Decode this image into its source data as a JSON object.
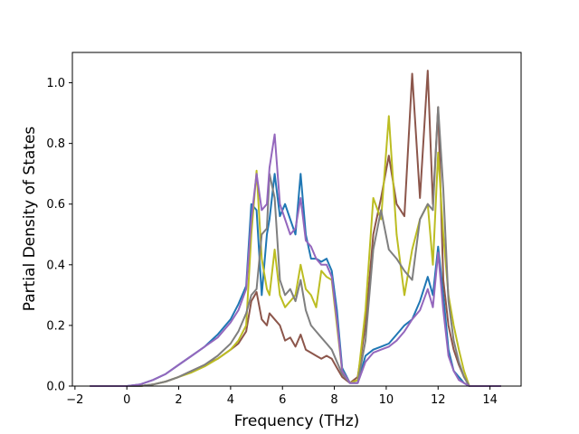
{
  "chart_data": {
    "type": "line",
    "title": "",
    "xlabel": "Frequency (THz)",
    "ylabel": "Partial Density of States",
    "xlim": [
      -2.1,
      15.2
    ],
    "ylim": [
      0.0,
      1.1
    ],
    "xticks": [
      -2,
      0,
      2,
      4,
      6,
      8,
      10,
      12,
      14
    ],
    "xtick_labels": [
      "−2",
      "0",
      "2",
      "4",
      "6",
      "8",
      "10",
      "12",
      "14"
    ],
    "yticks": [
      0.0,
      0.2,
      0.4,
      0.6,
      0.8,
      1.0
    ],
    "ytick_labels": [
      "0.0",
      "0.2",
      "0.4",
      "0.6",
      "0.8",
      "1.0"
    ],
    "grid": false,
    "legend": "none",
    "series": [
      {
        "color": "#1f77b4",
        "x": [
          -1.4,
          0,
          0.5,
          1,
          1.5,
          2,
          2.5,
          3,
          3.5,
          4,
          4.3,
          4.6,
          4.8,
          5,
          5.2,
          5.4,
          5.5,
          5.7,
          5.9,
          6.1,
          6.3,
          6.5,
          6.7,
          6.9,
          7.1,
          7.3,
          7.5,
          7.7,
          7.9,
          8.1,
          8.3,
          8.6,
          8.9,
          9.2,
          9.5,
          9.8,
          10.1,
          10.4,
          10.7,
          11,
          11.3,
          11.6,
          11.8,
          12,
          12.2,
          12.4,
          12.6,
          12.8,
          13,
          13.2,
          14.4
        ],
        "y": [
          0,
          0,
          0.005,
          0.02,
          0.04,
          0.07,
          0.1,
          0.13,
          0.17,
          0.22,
          0.27,
          0.33,
          0.6,
          0.58,
          0.3,
          0.5,
          0.55,
          0.7,
          0.56,
          0.6,
          0.55,
          0.5,
          0.7,
          0.5,
          0.42,
          0.42,
          0.41,
          0.42,
          0.38,
          0.25,
          0.06,
          0.01,
          0.01,
          0.1,
          0.12,
          0.13,
          0.14,
          0.17,
          0.2,
          0.22,
          0.28,
          0.36,
          0.3,
          0.46,
          0.3,
          0.12,
          0.05,
          0.03,
          0.01,
          0,
          0
        ]
      },
      {
        "color": "#8c564b",
        "x": [
          -1.4,
          0,
          0.5,
          1,
          1.5,
          2,
          2.5,
          3,
          3.5,
          4,
          4.3,
          4.6,
          4.8,
          5,
          5.2,
          5.4,
          5.5,
          5.7,
          5.9,
          6.1,
          6.3,
          6.5,
          6.7,
          6.9,
          7.1,
          7.3,
          7.5,
          7.7,
          7.9,
          8.1,
          8.3,
          8.6,
          8.9,
          9.2,
          9.5,
          9.8,
          10.1,
          10.4,
          10.7,
          11,
          11.3,
          11.6,
          11.8,
          12,
          12.2,
          12.4,
          12.6,
          12.8,
          13,
          13.2,
          14.4
        ],
        "y": [
          0,
          0,
          0,
          0.005,
          0.015,
          0.03,
          0.05,
          0.07,
          0.09,
          0.12,
          0.14,
          0.18,
          0.28,
          0.31,
          0.22,
          0.2,
          0.24,
          0.22,
          0.2,
          0.15,
          0.16,
          0.13,
          0.17,
          0.12,
          0.11,
          0.1,
          0.09,
          0.1,
          0.09,
          0.06,
          0.03,
          0.01,
          0.03,
          0.2,
          0.5,
          0.62,
          0.76,
          0.6,
          0.56,
          1.03,
          0.62,
          1.04,
          0.6,
          0.92,
          0.35,
          0.2,
          0.12,
          0.07,
          0.03,
          0,
          0
        ]
      },
      {
        "color": "#bcbd22",
        "x": [
          -1.4,
          0,
          0.5,
          1,
          1.5,
          2,
          2.5,
          3,
          3.5,
          4,
          4.3,
          4.6,
          4.8,
          5,
          5.2,
          5.4,
          5.5,
          5.7,
          5.9,
          6.1,
          6.3,
          6.5,
          6.7,
          6.9,
          7.1,
          7.3,
          7.5,
          7.7,
          7.9,
          8.1,
          8.3,
          8.6,
          8.9,
          9.2,
          9.5,
          9.8,
          10.1,
          10.4,
          10.7,
          11,
          11.3,
          11.6,
          11.8,
          12,
          12.2,
          12.4,
          12.6,
          12.8,
          13,
          13.2,
          14.4
        ],
        "y": [
          0,
          0,
          0,
          0.005,
          0.015,
          0.03,
          0.045,
          0.065,
          0.09,
          0.12,
          0.15,
          0.2,
          0.5,
          0.71,
          0.42,
          0.32,
          0.3,
          0.45,
          0.3,
          0.26,
          0.28,
          0.3,
          0.4,
          0.32,
          0.3,
          0.26,
          0.38,
          0.36,
          0.35,
          0.2,
          0.05,
          0.01,
          0.02,
          0.25,
          0.62,
          0.55,
          0.89,
          0.5,
          0.3,
          0.45,
          0.55,
          0.6,
          0.4,
          0.77,
          0.5,
          0.3,
          0.2,
          0.12,
          0.05,
          0,
          0
        ]
      },
      {
        "color": "#7f7f7f",
        "x": [
          -1.4,
          0,
          0.5,
          1,
          1.5,
          2,
          2.5,
          3,
          3.5,
          4,
          4.3,
          4.6,
          4.8,
          5,
          5.2,
          5.4,
          5.5,
          5.7,
          5.9,
          6.1,
          6.3,
          6.5,
          6.7,
          6.9,
          7.1,
          7.3,
          7.5,
          7.7,
          7.9,
          8.1,
          8.3,
          8.6,
          8.9,
          9.2,
          9.5,
          9.8,
          10.1,
          10.4,
          10.7,
          11,
          11.3,
          11.6,
          11.8,
          12,
          12.2,
          12.4,
          12.6,
          12.8,
          13,
          13.2,
          14.4
        ],
        "y": [
          0,
          0,
          0,
          0.005,
          0.015,
          0.03,
          0.05,
          0.07,
          0.1,
          0.14,
          0.18,
          0.24,
          0.3,
          0.32,
          0.5,
          0.52,
          0.7,
          0.62,
          0.35,
          0.3,
          0.32,
          0.28,
          0.35,
          0.25,
          0.2,
          0.18,
          0.16,
          0.14,
          0.12,
          0.08,
          0.04,
          0.01,
          0.01,
          0.15,
          0.45,
          0.58,
          0.45,
          0.42,
          0.38,
          0.35,
          0.55,
          0.6,
          0.58,
          0.92,
          0.65,
          0.28,
          0.15,
          0.08,
          0.03,
          0,
          0
        ]
      },
      {
        "color": "#9467bd",
        "x": [
          -1.4,
          0,
          0.5,
          1,
          1.5,
          2,
          2.5,
          3,
          3.5,
          4,
          4.3,
          4.6,
          4.8,
          5,
          5.2,
          5.4,
          5.5,
          5.7,
          5.9,
          6.1,
          6.3,
          6.5,
          6.7,
          6.9,
          7.1,
          7.3,
          7.5,
          7.7,
          7.9,
          8.1,
          8.3,
          8.6,
          8.9,
          9.2,
          9.5,
          9.8,
          10.1,
          10.4,
          10.7,
          11,
          11.3,
          11.6,
          11.8,
          12,
          12.2,
          12.4,
          12.6,
          12.8,
          13,
          13.2,
          14.4
        ],
        "y": [
          0,
          0,
          0.005,
          0.02,
          0.04,
          0.07,
          0.1,
          0.13,
          0.16,
          0.21,
          0.25,
          0.32,
          0.55,
          0.7,
          0.58,
          0.6,
          0.72,
          0.83,
          0.6,
          0.55,
          0.5,
          0.52,
          0.62,
          0.48,
          0.46,
          0.42,
          0.4,
          0.4,
          0.36,
          0.22,
          0.05,
          0.01,
          0.01,
          0.08,
          0.11,
          0.12,
          0.13,
          0.15,
          0.18,
          0.22,
          0.25,
          0.32,
          0.26,
          0.44,
          0.25,
          0.1,
          0.05,
          0.02,
          0.01,
          0,
          0
        ]
      }
    ]
  }
}
